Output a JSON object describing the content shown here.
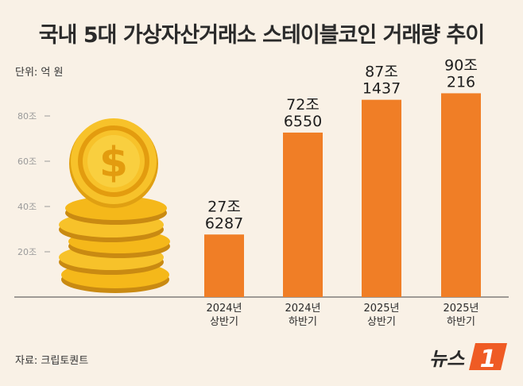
{
  "title": "국내 5대 가상자산거래소 스테이블코인 거래량 추이",
  "unit_label": "단위: 억 원",
  "source_label": "자료: 크립토퀀트",
  "logo_text": "뉴스",
  "logo_number": "1",
  "colors": {
    "bar": "#f07e26",
    "background": "#f9f1e6",
    "coin": "#f5b81a",
    "logo": "#ef5b24"
  },
  "chart_data": {
    "type": "bar",
    "categories": [
      [
        "2024년",
        "상반기"
      ],
      [
        "2024년",
        "하반기"
      ],
      [
        "2025년",
        "상반기"
      ],
      [
        "2025년",
        "하반기"
      ]
    ],
    "values": [
      276287,
      726550,
      871437,
      900216
    ],
    "data_labels": [
      [
        "27조",
        "6287"
      ],
      [
        "72조",
        "6550"
      ],
      [
        "87조",
        "1437"
      ],
      [
        "90조",
        "216"
      ]
    ],
    "yticks": [
      200000,
      400000,
      600000,
      800000
    ],
    "ytick_labels": [
      "20조",
      "40조",
      "60조",
      "80조"
    ],
    "ylim": [
      0,
      1000000
    ],
    "grid": false,
    "decoration": "coin-stack-icon"
  }
}
